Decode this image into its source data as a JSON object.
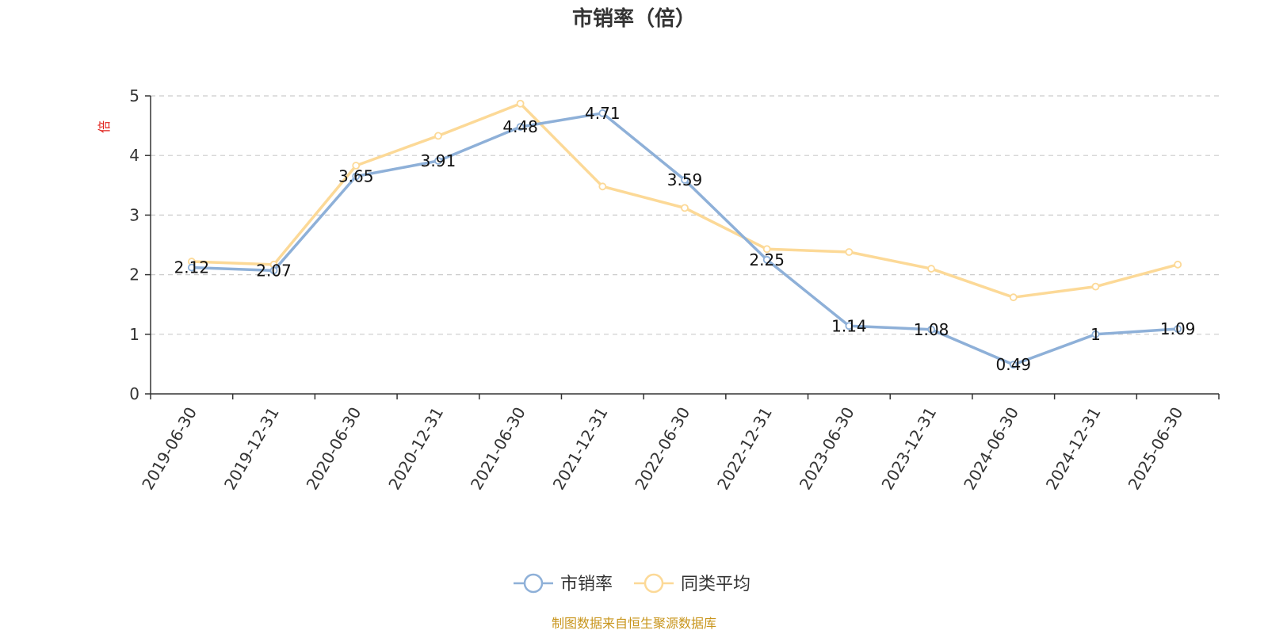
{
  "chart_data": {
    "type": "line",
    "title": "市销率（倍）",
    "ylabel": "倍",
    "categories": [
      "2019-06-30",
      "2019-12-31",
      "2020-06-30",
      "2020-12-31",
      "2021-06-30",
      "2021-12-31",
      "2022-06-30",
      "2022-12-31",
      "2023-06-30",
      "2023-12-31",
      "2024-06-30",
      "2024-12-31",
      "2025-06-30"
    ],
    "yticks": [
      "0",
      "1",
      "2",
      "3",
      "4",
      "5"
    ],
    "ylim": [
      0,
      5
    ],
    "grid": true,
    "legend_position": "bottom",
    "series": [
      {
        "name": "市销率",
        "color": "#8eb0d8",
        "values": [
          2.12,
          2.07,
          3.65,
          3.91,
          4.48,
          4.71,
          3.59,
          2.25,
          1.14,
          1.08,
          0.49,
          1,
          1.09
        ],
        "labels": [
          "2.12",
          "2.07",
          "3.65",
          "3.91",
          "4.48",
          "4.71",
          "3.59",
          "2.25",
          "1.14",
          "1.08",
          "0.49",
          "1",
          "1.09"
        ]
      },
      {
        "name": "同类平均",
        "color": "#fcd997",
        "values": [
          2.22,
          2.17,
          3.83,
          4.33,
          4.87,
          3.48,
          3.12,
          2.43,
          2.38,
          2.1,
          1.62,
          1.8,
          2.17
        ]
      }
    ]
  },
  "source_text": "制图数据来自恒生聚源数据库",
  "colors": {
    "axis": "#333333",
    "grid": "#cccccc",
    "unit": "#e0201b",
    "source": "#c8951c"
  }
}
